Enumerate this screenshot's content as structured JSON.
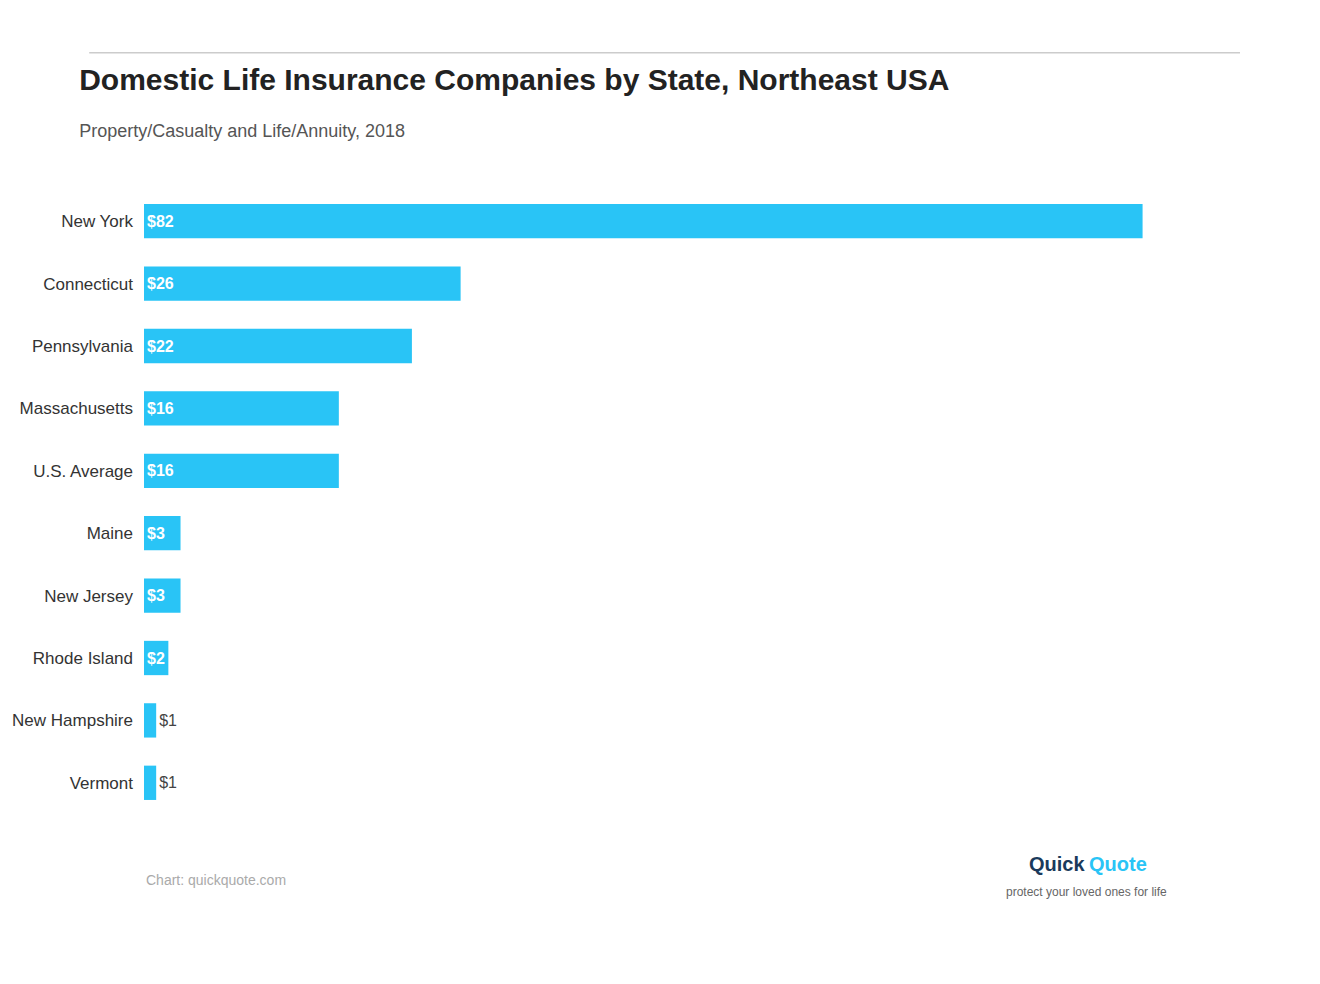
{
  "chart_data": {
    "type": "bar",
    "orientation": "horizontal",
    "title": "Domestic Life Insurance Companies by State, Northeast USA",
    "subtitle": "Property/Casualty and Life/Annuity, 2018",
    "categories": [
      "New York",
      "Connecticut",
      "Pennsylvania",
      "Massachusetts",
      "U.S. Average",
      "Maine",
      "New Jersey",
      "Rhode Island",
      "New Hampshire",
      "Vermont"
    ],
    "values": [
      82,
      26,
      22,
      16,
      16,
      3,
      3,
      2,
      1,
      1
    ],
    "value_labels": [
      "$82",
      "$26",
      "$22",
      "$16",
      "$16",
      "$3",
      "$3",
      "$2",
      "$1",
      "$1"
    ],
    "data_labels": true,
    "color": "#29C4F6",
    "xlim": [
      0,
      90
    ],
    "grid": false,
    "tick_labels": "y",
    "annotations": [
      {
        "text": "Chart: quickquote.com"
      },
      {
        "text": "Quick",
        "color": "#1a3a5c"
      },
      {
        "text": "Quote",
        "color": "#29C4F6"
      },
      {
        "text": "protect your loved ones for life"
      }
    ]
  }
}
